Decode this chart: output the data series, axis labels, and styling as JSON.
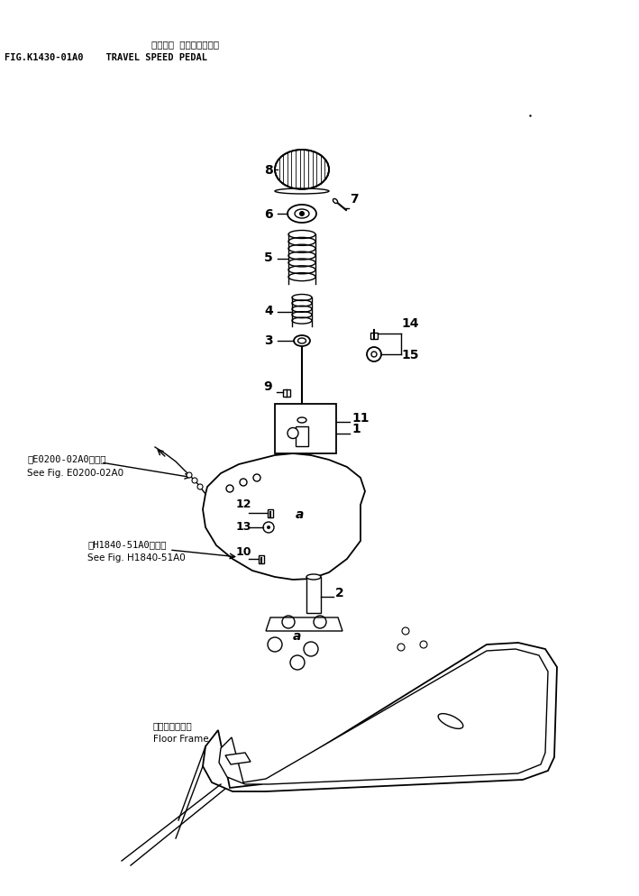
{
  "title_jp": "ソウコウ スピードペダル",
  "title_line2": "FIG.K1430-01A0    TRAVEL SPEED PEDAL",
  "ref1_jp": "第E0200-02A0図参照",
  "ref1_en": "See Fig. E0200-02A0",
  "ref2_jp": "第H1840-51A0図参照",
  "ref2_en": "See Fig. H1840-51A0",
  "floor_label_jp": "フロアフレーム",
  "floor_label_en": "Floor Frame",
  "bg_color": "#ffffff",
  "line_color": "#000000"
}
